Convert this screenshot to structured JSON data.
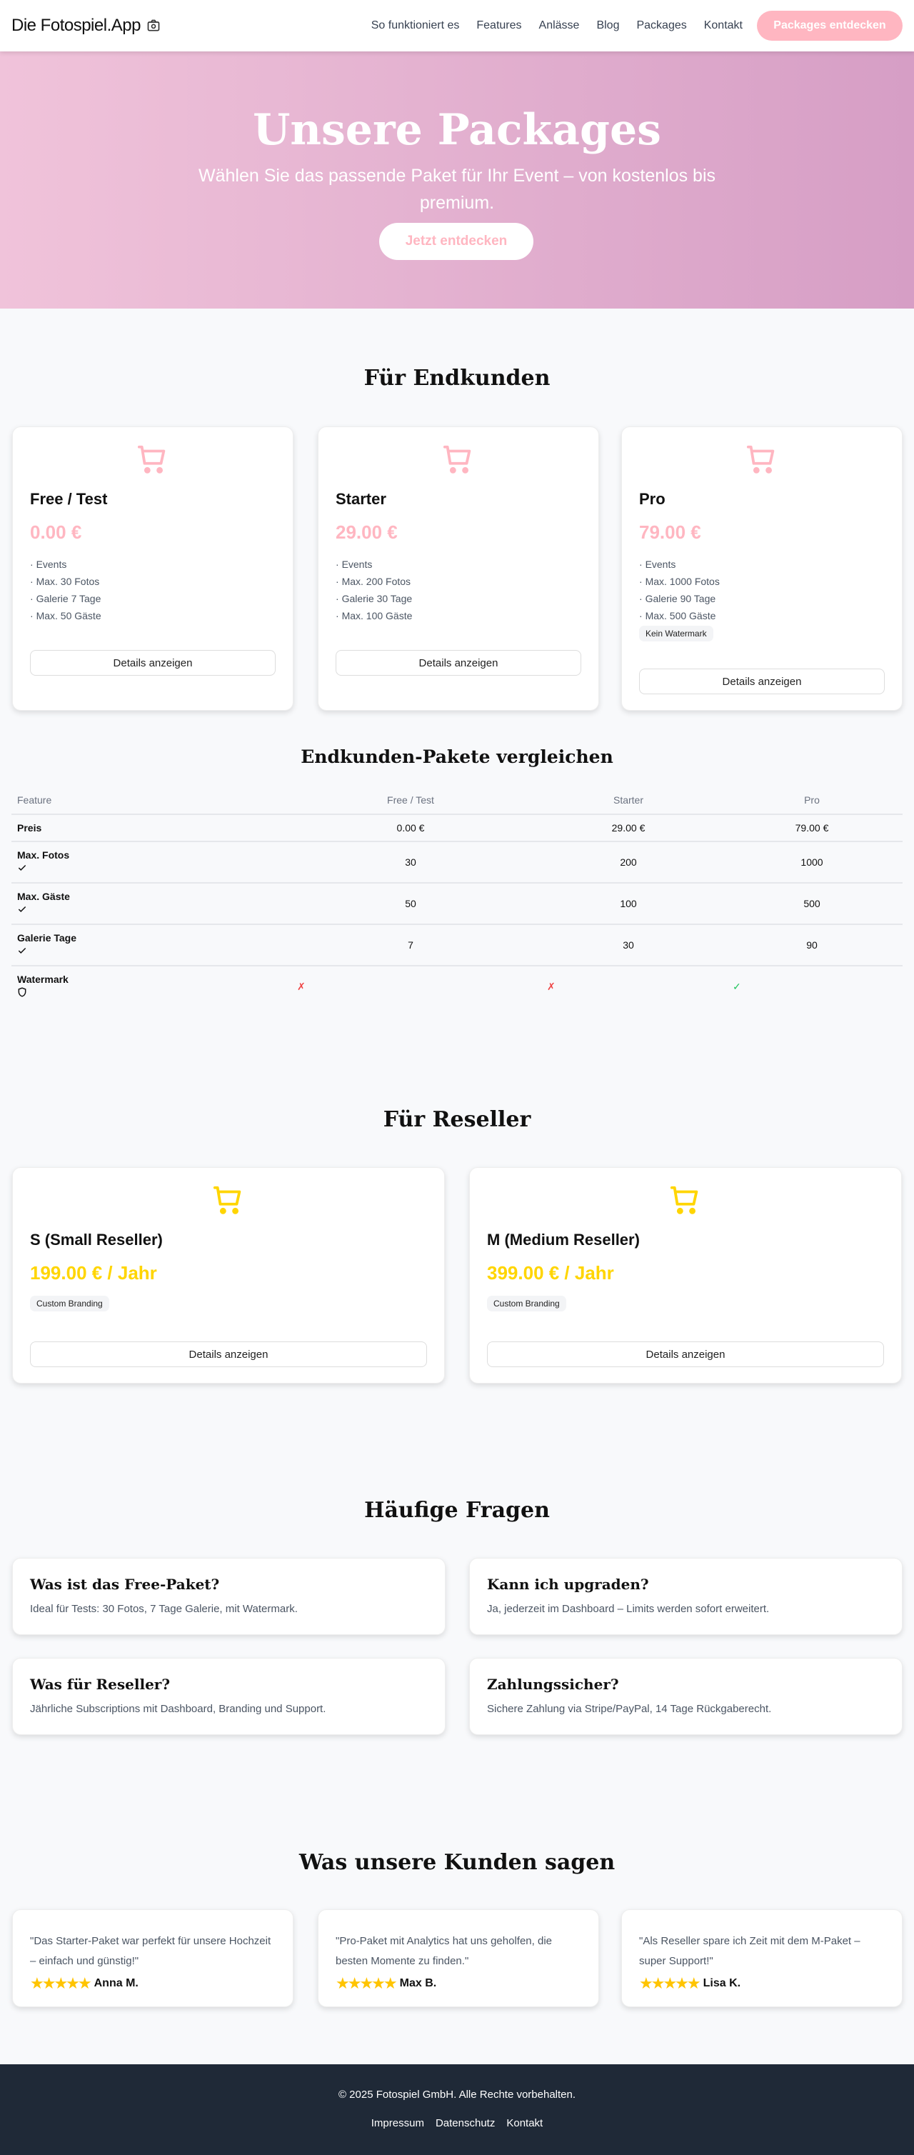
{
  "header": {
    "logo": "Die Fotospiel.App",
    "nav": [
      "So funktioniert es",
      "Features",
      "Anlässe",
      "Blog",
      "Packages",
      "Kontakt"
    ],
    "cta": "Packages entdecken"
  },
  "hero": {
    "title": "Unsere Packages",
    "subtitle": "Wählen Sie das passende Paket für Ihr Event – von kostenlos bis premium.",
    "button": "Jetzt entdecken"
  },
  "colors": {
    "accent": "#ffb6c1",
    "reseller": "#ffd500",
    "footer": "#1f2937"
  },
  "endkunden": {
    "heading": "Für Endkunden",
    "details_label": "Details anzeigen",
    "packages": [
      {
        "name": "Free / Test",
        "price": "0.00 €",
        "features": [
          "Events",
          "Max. 30 Fotos",
          "Galerie 7 Tage",
          "Max. 50 Gäste"
        ],
        "badge": ""
      },
      {
        "name": "Starter",
        "price": "29.00 €",
        "features": [
          "Events",
          "Max. 200 Fotos",
          "Galerie 30 Tage",
          "Max. 100 Gäste"
        ],
        "badge": ""
      },
      {
        "name": "Pro",
        "price": "79.00 €",
        "features": [
          "Events",
          "Max. 1000 Fotos",
          "Galerie 90 Tage",
          "Max. 500 Gäste"
        ],
        "badge": "Kein Watermark"
      }
    ]
  },
  "compare": {
    "heading": "Endkunden-Pakete vergleichen",
    "columns": [
      "Feature",
      "Free / Test",
      "Starter",
      "Pro"
    ],
    "rows": [
      {
        "feature": "Preis",
        "values": [
          "0.00 €",
          "29.00 €",
          "79.00 €"
        ]
      },
      {
        "feature": "Max. Fotos",
        "icon": "check-icon",
        "values": [
          "30",
          "200",
          "1000"
        ]
      },
      {
        "feature": "Max. Gäste",
        "icon": "check-icon",
        "values": [
          "50",
          "100",
          "500"
        ]
      },
      {
        "feature": "Galerie Tage",
        "icon": "check-icon",
        "values": [
          "7",
          "30",
          "90"
        ]
      },
      {
        "feature": "Watermark",
        "icon": "shield-icon",
        "values": [
          false,
          false,
          true
        ]
      }
    ]
  },
  "reseller": {
    "heading": "Für Reseller",
    "details_label": "Details anzeigen",
    "packages": [
      {
        "name": "S (Small Reseller)",
        "price": "199.00 € / Jahr",
        "badge": "Custom Branding"
      },
      {
        "name": "M (Medium Reseller)",
        "price": "399.00 € / Jahr",
        "badge": "Custom Branding"
      }
    ]
  },
  "faq": {
    "heading": "Häufige Fragen",
    "items": [
      {
        "q": "Was ist das Free-Paket?",
        "a": "Ideal für Tests: 30 Fotos, 7 Tage Galerie, mit Watermark."
      },
      {
        "q": "Kann ich upgraden?",
        "a": "Ja, jederzeit im Dashboard – Limits werden sofort erweitert."
      },
      {
        "q": "Was für Reseller?",
        "a": "Jährliche Subscriptions mit Dashboard, Branding und Support."
      },
      {
        "q": "Zahlungssicher?",
        "a": "Sichere Zahlung via Stripe/PayPal, 14 Tage Rückgaberecht."
      }
    ]
  },
  "testimonials": {
    "heading": "Was unsere Kunden sagen",
    "items": [
      {
        "quote": "\"Das Starter-Paket war perfekt für unsere Hochzeit – einfach und günstig!\"",
        "name": "Anna M.",
        "rating": 5
      },
      {
        "quote": "\"Pro-Paket mit Analytics hat uns geholfen, die besten Momente zu finden.\"",
        "name": "Max B.",
        "rating": 5
      },
      {
        "quote": "\"Als Reseller spare ich Zeit mit dem M-Paket – super Support!\"",
        "name": "Lisa K.",
        "rating": 5
      }
    ]
  },
  "footer": {
    "copyright": "© 2025 Fotospiel GmbH. Alle Rechte vorbehalten.",
    "links": [
      "Impressum",
      "Datenschutz",
      "Kontakt"
    ]
  }
}
